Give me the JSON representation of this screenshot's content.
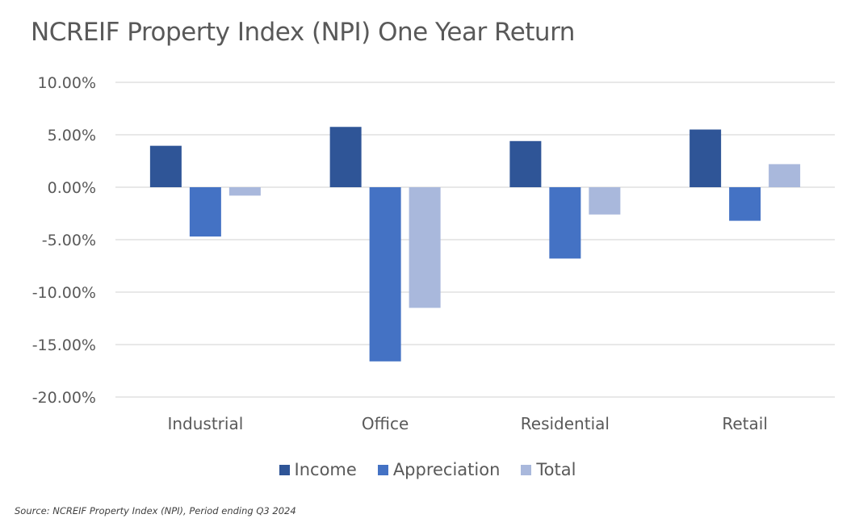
{
  "chart_data": {
    "type": "bar",
    "title": "NCREIF Property Index (NPI) One Year Return",
    "xlabel": "",
    "ylabel": "",
    "ylim": [
      -20,
      10
    ],
    "yticks": [
      10,
      5,
      0,
      -5,
      -10,
      -15,
      -20
    ],
    "ytick_labels": [
      "10.00%",
      "5.00%",
      "0.00%",
      "-5.00%",
      "-10.00%",
      "-15.00%",
      "-20.00%"
    ],
    "grid": true,
    "legend_position": "bottom",
    "categories": [
      "Industrial",
      "Office",
      "Residential",
      "Retail"
    ],
    "series": [
      {
        "name": "Income",
        "color": "#2F5597",
        "values": [
          3.95,
          5.75,
          4.4,
          5.5
        ]
      },
      {
        "name": "Appreciation",
        "color": "#4472C4",
        "values": [
          -4.7,
          -16.6,
          -6.8,
          -3.2
        ]
      },
      {
        "name": "Total",
        "color": "#A9B8DC",
        "values": [
          -0.8,
          -11.5,
          -2.6,
          2.2
        ]
      }
    ],
    "source_note": "Source: NCREIF Property Index (NPI), Period ending Q3 2024"
  }
}
